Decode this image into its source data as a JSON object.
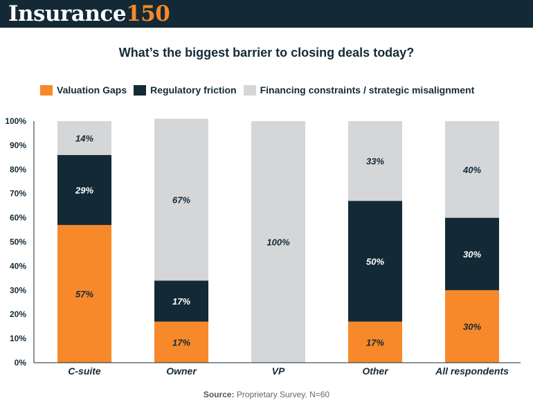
{
  "header": {
    "logo_word": "Insurance",
    "logo_number": "150",
    "bg_color": "#132a36",
    "accent_color": "#f7892a"
  },
  "chart_data": {
    "type": "bar",
    "stacked": true,
    "title": "What’s the biggest barrier to closing deals today?",
    "categories": [
      "C-suite",
      "Owner",
      "VP",
      "Other",
      "All respondents"
    ],
    "series": [
      {
        "name": "Valuation Gaps",
        "color": "#f7892a",
        "values": [
          57,
          17,
          0,
          17,
          30
        ],
        "labels": [
          "57%",
          "17%",
          "",
          "17%",
          "30%"
        ]
      },
      {
        "name": "Regulatory friction",
        "color": "#132a36",
        "values": [
          29,
          17,
          0,
          50,
          30
        ],
        "labels": [
          "29%",
          "17%",
          "",
          "50%",
          "30%"
        ]
      },
      {
        "name": "Financing constraints / strategic misalignment",
        "color": "#d5d6d8",
        "values": [
          14,
          67,
          100,
          33,
          40
        ],
        "labels": [
          "14%",
          "67%",
          "100%",
          "33%",
          "40%"
        ]
      }
    ],
    "ylim": [
      0,
      100
    ],
    "yticks": [
      "0%",
      "10%",
      "20%",
      "30%",
      "40%",
      "50%",
      "60%",
      "70%",
      "80%",
      "90%",
      "100%"
    ],
    "legend_position": "top",
    "grid": false
  },
  "source": {
    "label": "Source:",
    "text": "Proprietary Survey. N=60"
  }
}
